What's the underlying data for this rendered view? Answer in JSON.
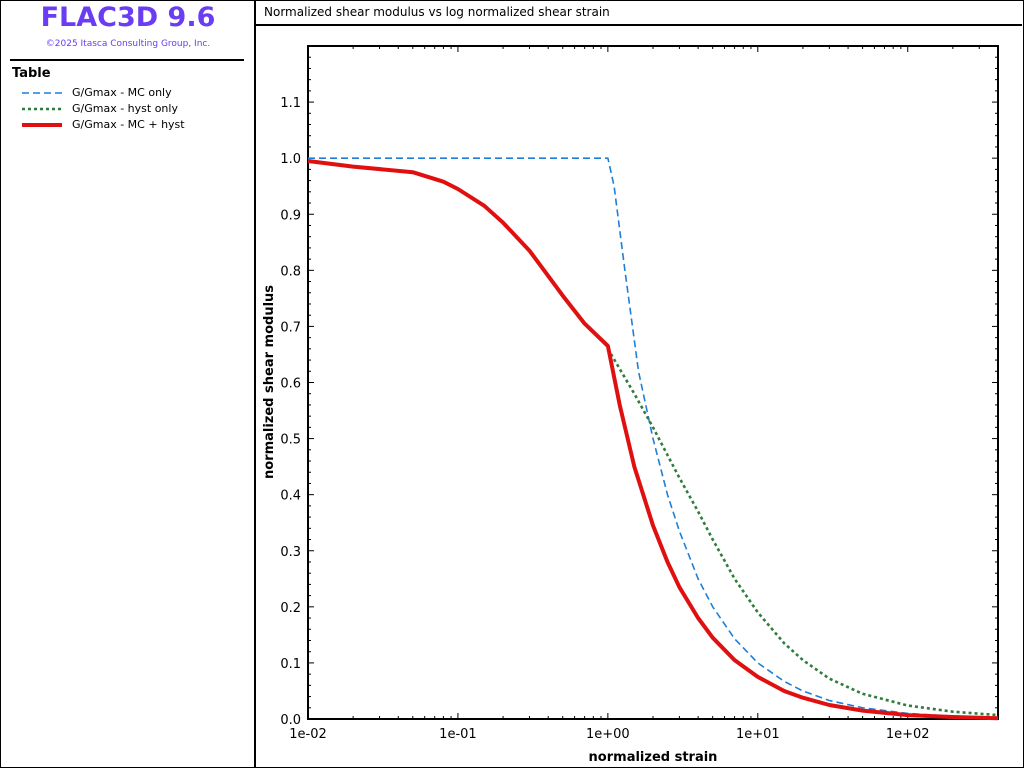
{
  "app": {
    "title": "FLAC3D 9.6",
    "copyright": "©2025 Itasca Consulting Group, Inc."
  },
  "legend": {
    "heading": "Table",
    "items": [
      {
        "label": "G/Gmax - MC only",
        "color": "#1f7fd8",
        "style": "dashed"
      },
      {
        "label": "G/Gmax - hyst only",
        "color": "#2e7d3a",
        "style": "dotted"
      },
      {
        "label": "G/Gmax - MC + hyst",
        "color": "#e01010",
        "style": "solid"
      }
    ]
  },
  "plot": {
    "title": "Normalized shear modulus vs log normalized shear strain"
  },
  "chart_data": {
    "type": "line",
    "xscale": "log",
    "xlabel": "normalized strain",
    "ylabel": "normalized shear modulus",
    "xlim": [
      0.01,
      400
    ],
    "ylim": [
      0,
      1.2
    ],
    "xticks": [
      0.01,
      0.1,
      1,
      10,
      100
    ],
    "xtick_labels": [
      "1e-02",
      "1e-01",
      "1e+00",
      "1e+01",
      "1e+02"
    ],
    "yticks": [
      0,
      0.1,
      0.2,
      0.3,
      0.4,
      0.5,
      0.6,
      0.7,
      0.8,
      0.9,
      1.0,
      1.1
    ],
    "ytick_labels": [
      "0.0",
      "0.1",
      "0.2",
      "0.3",
      "0.4",
      "0.5",
      "0.6",
      "0.7",
      "0.8",
      "0.9",
      "1.0",
      "1.1"
    ],
    "grid": false,
    "series": [
      {
        "name": "G/Gmax - MC only",
        "color": "#1f7fd8",
        "style": "dashed",
        "x": [
          0.01,
          0.1,
          0.5,
          1.0,
          1.1,
          1.3,
          1.6,
          2.0,
          2.5,
          3.0,
          4.0,
          5.0,
          7.0,
          10,
          15,
          20,
          30,
          50,
          100,
          200,
          400
        ],
        "y": [
          1.0,
          1.0,
          1.0,
          1.0,
          0.95,
          0.8,
          0.62,
          0.5,
          0.4,
          0.335,
          0.25,
          0.2,
          0.143,
          0.1,
          0.067,
          0.05,
          0.033,
          0.02,
          0.01,
          0.005,
          0.0025
        ]
      },
      {
        "name": "G/Gmax - hyst only",
        "color": "#2e7d3a",
        "style": "dotted",
        "x": [
          1.0,
          1.5,
          2.0,
          3.0,
          4.0,
          5.0,
          7.0,
          10,
          15,
          20,
          30,
          50,
          100,
          200,
          400
        ],
        "y": [
          0.66,
          0.58,
          0.52,
          0.43,
          0.37,
          0.32,
          0.25,
          0.19,
          0.135,
          0.105,
          0.072,
          0.045,
          0.024,
          0.013,
          0.007
        ]
      },
      {
        "name": "G/Gmax - MC + hyst",
        "color": "#e01010",
        "style": "solid",
        "x": [
          0.01,
          0.02,
          0.05,
          0.08,
          0.1,
          0.15,
          0.2,
          0.3,
          0.4,
          0.5,
          0.7,
          1.0,
          1.2,
          1.5,
          2.0,
          2.5,
          3.0,
          4.0,
          5.0,
          7.0,
          10,
          15,
          20,
          30,
          50,
          100,
          200,
          400
        ],
        "y": [
          0.995,
          0.985,
          0.975,
          0.958,
          0.945,
          0.915,
          0.885,
          0.835,
          0.79,
          0.755,
          0.705,
          0.665,
          0.56,
          0.45,
          0.345,
          0.28,
          0.235,
          0.18,
          0.145,
          0.105,
          0.075,
          0.05,
          0.038,
          0.025,
          0.015,
          0.007,
          0.0035,
          0.0015
        ]
      }
    ]
  }
}
